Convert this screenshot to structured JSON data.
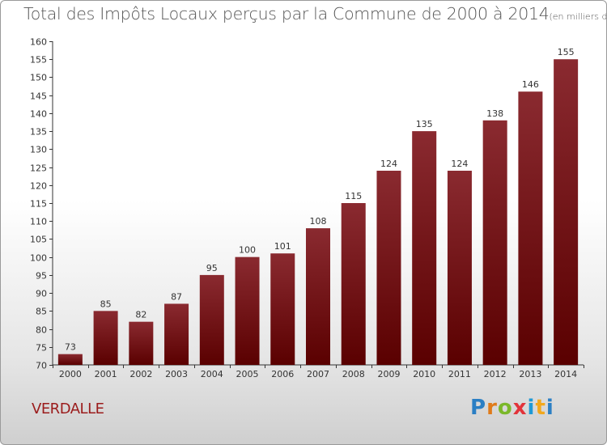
{
  "header": {
    "title": "Total des Impôts Locaux perçus par la Commune de 2000 à 2014",
    "subtitle": "(en milliers d'€)"
  },
  "commune": "VERDALLE",
  "logo": {
    "letters": [
      "P",
      "r",
      "o",
      "x",
      "i",
      "t",
      "i"
    ]
  },
  "colors": {
    "bar_top": "#8a2a30",
    "bar_bottom": "#5a0000",
    "axis": "#333333"
  },
  "chart_data": {
    "type": "bar",
    "title": "Total des Impôts Locaux perçus par la Commune de 2000 à 2014",
    "xlabel": "",
    "ylabel": "",
    "categories": [
      "2000",
      "2001",
      "2002",
      "2003",
      "2004",
      "2005",
      "2006",
      "2007",
      "2008",
      "2009",
      "2010",
      "2011",
      "2012",
      "2013",
      "2014"
    ],
    "values": [
      73,
      85,
      82,
      87,
      95,
      100,
      101,
      108,
      115,
      124,
      135,
      124,
      138,
      146,
      155
    ],
    "ylim": [
      70,
      160
    ],
    "yticks": [
      70,
      75,
      80,
      85,
      90,
      95,
      100,
      105,
      110,
      115,
      120,
      125,
      130,
      135,
      140,
      145,
      150,
      155,
      160
    ],
    "grid": false
  }
}
